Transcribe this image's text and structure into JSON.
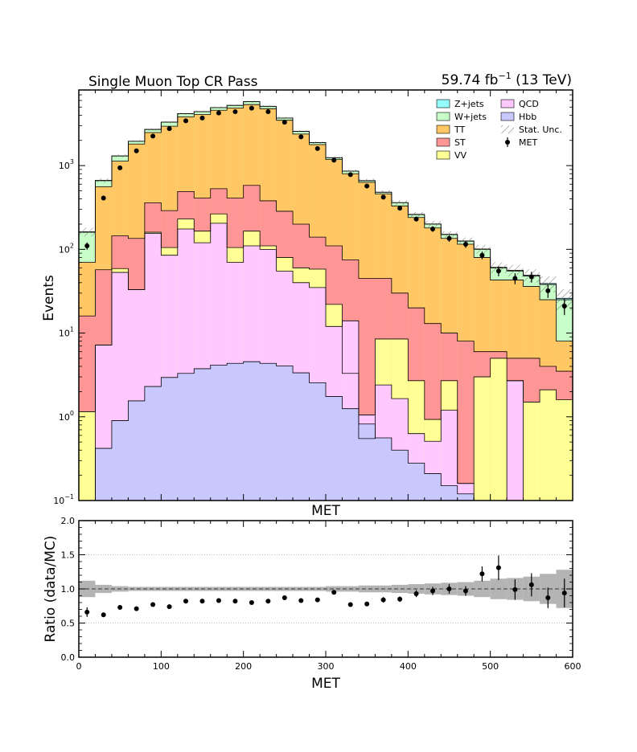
{
  "chart_data": [
    {
      "type": "stacked-histogram",
      "title": "Single Muon Top CR Pass",
      "lumi_label": {
        "value": "59.74 fb",
        "exponent": "−1",
        "suffix": " (13 TeV)"
      },
      "xlabel": "MET",
      "ylabel": "Events",
      "yscale": "log",
      "ylim": [
        0.1,
        8000
      ],
      "xlim": [
        0,
        600
      ],
      "bin_edges": [
        0,
        20,
        40,
        60,
        80,
        100,
        120,
        140,
        160,
        180,
        200,
        220,
        240,
        260,
        280,
        300,
        320,
        340,
        360,
        380,
        400,
        420,
        440,
        460,
        480,
        500,
        520,
        540,
        560,
        580,
        600
      ],
      "ytick_labels": [
        {
          "value": 0.1,
          "base": "10",
          "exp": "−1"
        },
        {
          "value": 1,
          "base": "10",
          "exp": "0"
        },
        {
          "value": 10,
          "base": "10",
          "exp": "1"
        },
        {
          "value": 100,
          "base": "10",
          "exp": "2"
        },
        {
          "value": 1000,
          "base": "10",
          "exp": "3"
        }
      ],
      "stack_order": [
        "Hbb",
        "QCD",
        "VV",
        "ST",
        "TT",
        "W+jets",
        "Z+jets"
      ],
      "series": [
        {
          "name": "Hbb",
          "color": "#c8c8ff",
          "values": [
            0.1,
            0.42,
            0.9,
            1.55,
            2.3,
            2.95,
            3.3,
            3.75,
            4.15,
            4.35,
            4.55,
            4.35,
            4.05,
            3.35,
            2.55,
            1.75,
            1.25,
            0.82,
            0.56,
            0.4,
            0.28,
            0.21,
            0.15,
            0.12,
            0.1,
            0.1,
            0.1,
            0.1,
            0.1,
            0.1
          ]
        },
        {
          "name": "QCD",
          "color": "#ffc8ff",
          "values": [
            0.1,
            7.2,
            53,
            33,
            155,
            85,
            175,
            120,
            205,
            70,
            110,
            100,
            55,
            40,
            35,
            12,
            14,
            1.05,
            2.4,
            1.65,
            0.63,
            0.51,
            1.2,
            0.16,
            0.1,
            0.1,
            2.7,
            0.1,
            0.1,
            0.1
          ]
        },
        {
          "name": "VV",
          "color": "#ffff96",
          "values": [
            1.15,
            7.2,
            59,
            33,
            160,
            105,
            230,
            165,
            265,
            105,
            165,
            110,
            80,
            60,
            58,
            22,
            3.3,
            0.55,
            8.5,
            8.5,
            2.7,
            0.93,
            2.7,
            0.16,
            3,
            5,
            2.7,
            1.5,
            2.1,
            1.6
          ]
        },
        {
          "name": "ST",
          "color": "#ff9696",
          "values": [
            16,
            57,
            145,
            135,
            360,
            290,
            490,
            410,
            530,
            410,
            580,
            380,
            285,
            200,
            140,
            110,
            75,
            45,
            45,
            30,
            20,
            13,
            10,
            8,
            6,
            6,
            5,
            5,
            4,
            3.5
          ]
        },
        {
          "name": "TT",
          "color": "#ffc864",
          "values": [
            70,
            560,
            1130,
            1810,
            2480,
            2950,
            3830,
            4080,
            4580,
            4880,
            5350,
            4780,
            3480,
            2380,
            1780,
            1180,
            800,
            630,
            460,
            330,
            240,
            180,
            135,
            115,
            80,
            43,
            43,
            36,
            25,
            8
          ]
        },
        {
          "name": "W+jets",
          "color": "#c8ffc8",
          "values": [
            160,
            660,
            1300,
            1950,
            2700,
            3300,
            4170,
            4410,
            4930,
            5230,
            5800,
            5100,
            3700,
            2560,
            1880,
            1240,
            860,
            660,
            480,
            360,
            260,
            200,
            150,
            125,
            100,
            60,
            55,
            48,
            38,
            25
          ]
        },
        {
          "name": "Z+jets",
          "color": "#96ffff",
          "values": [
            162,
            665,
            1305,
            1955,
            2705,
            3305,
            4175,
            4415,
            4935,
            5235,
            5805,
            5105,
            3705,
            2562,
            1882,
            1242,
            862,
            662,
            482,
            362,
            262,
            201,
            151,
            126,
            101,
            61,
            56,
            49,
            39,
            26
          ]
        }
      ],
      "stat_unc": {
        "name": "Stat. Unc.",
        "rel_err": [
          0.12,
          0.06,
          0.04,
          0.03,
          0.03,
          0.03,
          0.03,
          0.03,
          0.03,
          0.03,
          0.03,
          0.03,
          0.03,
          0.03,
          0.03,
          0.04,
          0.04,
          0.05,
          0.05,
          0.06,
          0.07,
          0.08,
          0.09,
          0.1,
          0.12,
          0.15,
          0.16,
          0.18,
          0.22,
          0.28
        ]
      },
      "data": {
        "name": "MET",
        "x": [
          10,
          30,
          50,
          70,
          90,
          110,
          130,
          150,
          170,
          190,
          210,
          230,
          250,
          270,
          290,
          310,
          330,
          350,
          370,
          390,
          410,
          430,
          450,
          470,
          490,
          510,
          530,
          550,
          570,
          590
        ],
        "y": [
          110,
          410,
          940,
          1500,
          2250,
          2760,
          3430,
          3700,
          4250,
          4400,
          4850,
          4400,
          3300,
          2200,
          1600,
          1160,
          780,
          570,
          420,
          310,
          230,
          175,
          135,
          115,
          85,
          55,
          45,
          47,
          32,
          21
        ],
        "yerr": [
          11,
          20,
          31,
          39,
          47,
          53,
          59,
          61,
          65,
          66,
          70,
          66,
          57,
          47,
          40,
          34,
          28,
          24,
          20,
          18,
          15,
          13,
          12,
          11,
          9,
          7.4,
          6.7,
          6.9,
          5.7,
          4.6
        ]
      },
      "legend": {
        "placement": "top-right",
        "entries": [
          {
            "label": "Z+jets",
            "kind": "box",
            "color": "#96ffff"
          },
          {
            "label": "QCD",
            "kind": "box",
            "color": "#ffc8ff"
          },
          {
            "label": "W+jets",
            "kind": "box",
            "color": "#c8ffc8"
          },
          {
            "label": "Hbb",
            "kind": "box",
            "color": "#c8c8ff"
          },
          {
            "label": "TT",
            "kind": "box",
            "color": "#ffc864"
          },
          {
            "label": "Stat. Unc.",
            "kind": "hatch",
            "color": "#888888"
          },
          {
            "label": "ST",
            "kind": "box",
            "color": "#ff9696"
          },
          {
            "label": "MET",
            "kind": "marker",
            "color": "#000000"
          },
          {
            "label": "VV",
            "kind": "box",
            "color": "#ffff96"
          }
        ]
      }
    },
    {
      "type": "scatter",
      "xlabel": "MET",
      "ylabel": "Ratio (data/MC)",
      "xlim": [
        0,
        600
      ],
      "ylim": [
        0,
        2
      ],
      "grid": "horizontal dotted",
      "xtick_labels": [
        "0",
        "100",
        "200",
        "300",
        "400",
        "500",
        "600"
      ],
      "xtick_values": [
        0,
        100,
        200,
        300,
        400,
        500,
        600
      ],
      "ytick_labels": [
        "0.0",
        "0.5",
        "1.0",
        "1.5",
        "2.0"
      ],
      "ytick_values": [
        0,
        0.5,
        1,
        1.5,
        2
      ],
      "reference_line": 1.0,
      "band_rel_err": [
        0.12,
        0.06,
        0.04,
        0.03,
        0.03,
        0.03,
        0.03,
        0.03,
        0.03,
        0.03,
        0.03,
        0.03,
        0.03,
        0.03,
        0.03,
        0.04,
        0.04,
        0.05,
        0.05,
        0.06,
        0.07,
        0.08,
        0.09,
        0.1,
        0.12,
        0.15,
        0.16,
        0.18,
        0.22,
        0.28
      ],
      "x": [
        10,
        30,
        50,
        70,
        90,
        110,
        130,
        150,
        170,
        190,
        210,
        230,
        250,
        270,
        290,
        310,
        330,
        350,
        370,
        390,
        410,
        430,
        450,
        470,
        490,
        510,
        530,
        550,
        570,
        590
      ],
      "y": [
        0.66,
        0.62,
        0.73,
        0.71,
        0.77,
        0.74,
        0.82,
        0.82,
        0.83,
        0.82,
        0.8,
        0.82,
        0.87,
        0.83,
        0.84,
        0.95,
        0.77,
        0.78,
        0.84,
        0.85,
        0.93,
        0.97,
        1.0,
        0.97,
        1.22,
        1.31,
        0.99,
        1.06,
        0.87,
        0.94
      ],
      "yerr": [
        0.07,
        0.03,
        0.02,
        0.02,
        0.02,
        0.02,
        0.02,
        0.02,
        0.02,
        0.02,
        0.02,
        0.02,
        0.02,
        0.02,
        0.02,
        0.03,
        0.03,
        0.03,
        0.04,
        0.04,
        0.05,
        0.06,
        0.07,
        0.07,
        0.11,
        0.18,
        0.15,
        0.17,
        0.15,
        0.21
      ]
    }
  ]
}
